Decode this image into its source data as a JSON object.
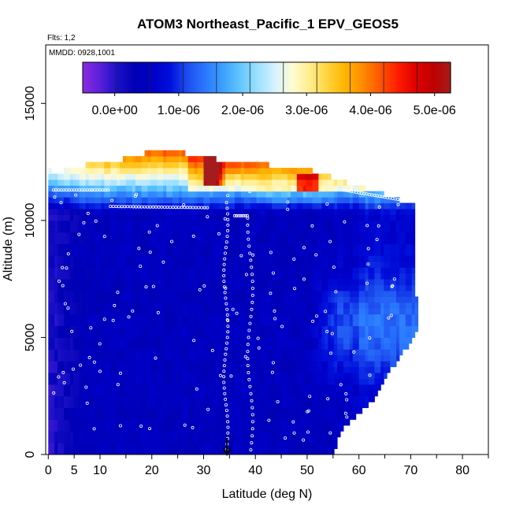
{
  "chart_data": {
    "type": "heatmap",
    "title": "ATOM3 Northeast_Pacific_1 EPV_GEOS5",
    "flights_label": "Flts: 1,2",
    "dates_label": "MMDD: 0928,1001",
    "xlabel": "Latitude (deg N)",
    "ylabel": "Altitude (m)",
    "xlim": [
      -0.5,
      85
    ],
    "ylim": [
      0,
      17500
    ],
    "x_ticks": [
      0,
      10,
      20,
      30,
      40,
      50,
      60,
      70,
      80
    ],
    "x_tick_labels": [
      "0",
      "10",
      "20",
      "30",
      "40",
      "50",
      "60",
      "70",
      "80"
    ],
    "x_minor_ticks": [
      5,
      15,
      25,
      35,
      45,
      55,
      65,
      75,
      85
    ],
    "x_extra_label": {
      "value": 5,
      "text": "5"
    },
    "y_ticks": [
      0,
      5000,
      10000,
      15000
    ],
    "y_tick_labels": [
      "0",
      "5000",
      "10000",
      "15000"
    ],
    "colorbar": {
      "min": -5e-07,
      "max": 5.25e-06,
      "tick_values": [
        0,
        1e-06,
        2e-06,
        3e-06,
        4e-06,
        5e-06
      ],
      "tick_labels": [
        "0.0e+00",
        "1.0e-06",
        "2.0e-06",
        "3.0e-06",
        "4.0e-06",
        "5.0e-06"
      ],
      "colors": [
        "#8a2be2",
        "#5a1fd9",
        "#1a10c8",
        "#0000b4",
        "#0000c8",
        "#0010dc",
        "#1d4fef",
        "#2b78ff",
        "#3ca0ff",
        "#63c8ff",
        "#9ce0ff",
        "#d8f2ff",
        "#fffbd0",
        "#ffec8a",
        "#ffd23a",
        "#ffb400",
        "#ff8a00",
        "#ff5400",
        "#ff1c00",
        "#e00000",
        "#c00000",
        "#a51c1c"
      ]
    },
    "marker_label": {
      "value": 34.5,
      "text": "arrow"
    },
    "summary": "EPV mostly 0 to 1.5e-06 below 10 km across 0-55 N, rising to 2-3e-06 near 11-12 km, with a maximum of about 5e-06 near 31 N at 12 km; lighter blue values 1.2e-06 north of 52 N between 2 and 8 km."
  }
}
